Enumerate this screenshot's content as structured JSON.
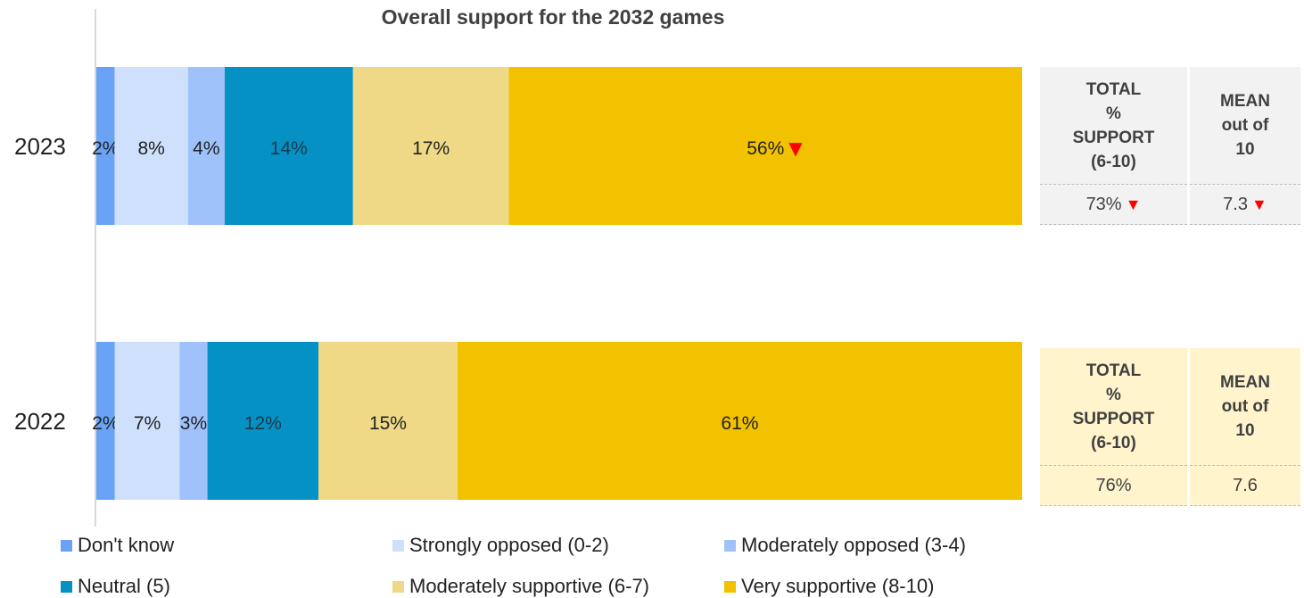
{
  "chart_data": {
    "type": "bar",
    "stacked": true,
    "orientation": "horizontal",
    "title": "Overall support for the 2032 games",
    "categories": [
      "2023",
      "2022"
    ],
    "series": [
      {
        "name": "Don't know",
        "color": "#6aa3f5",
        "values": [
          2,
          2
        ],
        "labels": [
          "2%",
          "2%"
        ]
      },
      {
        "name": "Strongly opposed (0-2)",
        "color": "#cfe0fc",
        "values": [
          8,
          7
        ],
        "labels": [
          "8%",
          "7%"
        ]
      },
      {
        "name": "Moderately opposed (3-4)",
        "color": "#9fc2fb",
        "values": [
          4,
          3
        ],
        "labels": [
          "4%",
          "3%"
        ]
      },
      {
        "name": "Neutral (5)",
        "color": "#0591c4",
        "values": [
          14,
          12
        ],
        "labels": [
          "14%",
          "12%"
        ]
      },
      {
        "name": "Moderately supportive (6-7)",
        "color": "#efd986",
        "values": [
          17,
          15
        ],
        "labels": [
          "17%",
          "15%"
        ]
      },
      {
        "name": "Very supportive (8-10)",
        "color": "#f2c200",
        "values": [
          56,
          61
        ],
        "labels": [
          "56%",
          "61%"
        ]
      }
    ],
    "significant_decrease": [
      {
        "category": "2023",
        "series": "Very supportive (8-10)"
      }
    ],
    "legend_position": "bottom",
    "grid": false,
    "summary_table": {
      "total_header": "TOTAL\n%\nSUPPORT\n(6-10)",
      "mean_header": "MEAN\nout of\n10",
      "rows": [
        {
          "year": "2023",
          "total": "73%",
          "mean": "7.3",
          "total_down": true,
          "mean_down": true,
          "header_bg": "#f2f2f2",
          "value_bg": "#f2f2f2"
        },
        {
          "year": "2022",
          "total": "76%",
          "mean": "7.6",
          "total_down": false,
          "mean_down": false,
          "header_bg": "#fff4cc",
          "value_bg": "#fff4cc"
        }
      ]
    },
    "decrease_marker": "▼",
    "decrease_marker_color": "#ff0000"
  }
}
